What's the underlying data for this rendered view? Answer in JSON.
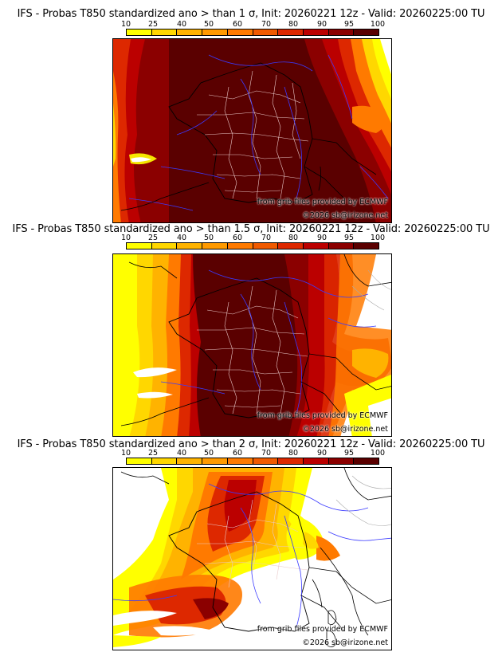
{
  "colors": {
    "10": "#ffff00",
    "25": "#ffd700",
    "40": "#ffb300",
    "50": "#ff9a00",
    "60": "#ff7a00",
    "70": "#f05a00",
    "80": "#dd2800",
    "90": "#bb0000",
    "95": "#8b0000",
    "100": "#5a0000",
    "border_country": "#000000",
    "border_department": "#e9c8c8",
    "rivers": "#3a3aff"
  },
  "colorbar": {
    "labels": [
      "10",
      "25",
      "40",
      "50",
      "60",
      "70",
      "80",
      "90",
      "95",
      "100"
    ],
    "fills": [
      "#ffff00",
      "#ffd700",
      "#ffb300",
      "#ff9a00",
      "#ff7a00",
      "#f05a00",
      "#dd2800",
      "#bb0000",
      "#8b0000",
      "#5a0000"
    ]
  },
  "panels": [
    {
      "title": "IFS - Probas T850  standardized ano > than 1 σ, Init: 20260221 12z - Valid: 20260225:00 TU",
      "credit_source": "from grib files provided by ECMWF",
      "credit_copyright": "©2026 sb@irizone.net"
    },
    {
      "title": "IFS - Probas T850  standardized ano > than 1.5 σ, Init: 20260221 12z - Valid: 20260225:00 TU",
      "credit_source": "from grib files provided by ECMWF",
      "credit_copyright": "©2026 sb@irizone.net"
    },
    {
      "title": "IFS - Probas T850  standardized ano > than 2 σ, Init: 20260221 12z - Valid: 20260225:00 TU",
      "credit_source": "from grib files provided by ECMWF",
      "credit_copyright": "©2026 sb@irizone.net"
    }
  ]
}
